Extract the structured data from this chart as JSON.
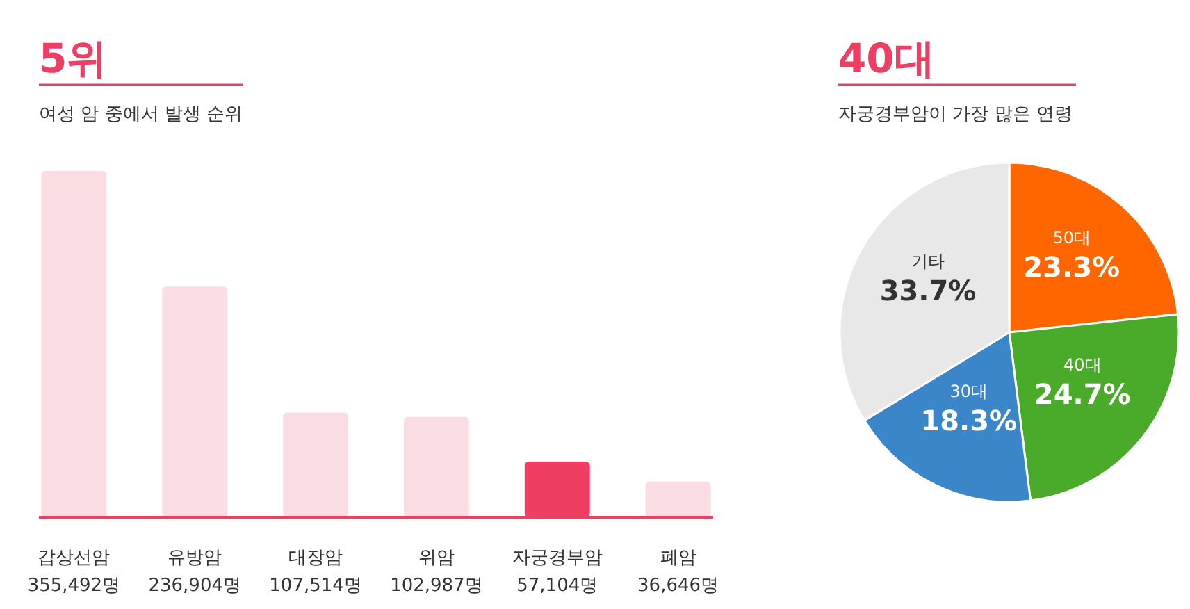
{
  "chart_data": [
    {
      "type": "bar",
      "title": "5위",
      "subtitle": "여성 암 중에서 발생 순위",
      "categories": [
        "갑상선암",
        "유방암",
        "대장암",
        "위암",
        "자궁경부암",
        "폐암"
      ],
      "values": [
        355492,
        236904,
        107514,
        102987,
        57104,
        36646
      ],
      "colors": [
        "#fadde3",
        "#fadde3",
        "#fadde3",
        "#fadde3",
        "#f03e62",
        "#fadde3"
      ],
      "value_labels": [
        "355,492명",
        "236,904명",
        "107,514명",
        "102,987명",
        "57,104명",
        "36,646명"
      ]
    },
    {
      "type": "pie",
      "title": "40대",
      "subtitle": "자궁경부암이 가장 많은 연령",
      "categories": [
        "50대",
        "40대",
        "30대",
        "기타"
      ],
      "values": [
        23.3,
        24.7,
        18.3,
        33.7
      ],
      "colors": [
        "#ff6600",
        "#4aab2a",
        "#3a86c8",
        "#e8e8e8"
      ],
      "value_labels": [
        "23.3%",
        "24.7%",
        "18.3%",
        "33.7%"
      ]
    }
  ]
}
